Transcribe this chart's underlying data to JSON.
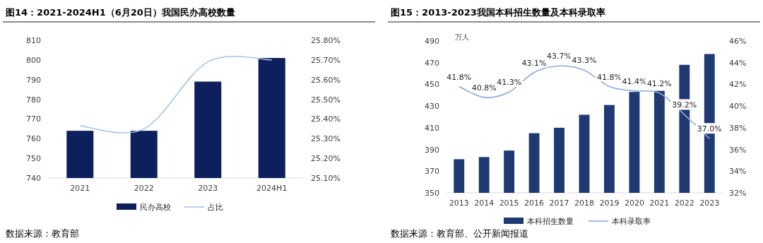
{
  "chart_data": [
    {
      "type": "bar",
      "title": "图14：2021-2024H1（6月20日）我国民办高校数量",
      "categories": [
        "2021",
        "2022",
        "2023",
        "2024H1"
      ],
      "series": [
        {
          "name": "民办高校",
          "color": "#0d1f5c",
          "values": [
            764,
            764,
            789,
            801
          ]
        },
        {
          "name": "占比",
          "type": "line",
          "axis": "y2",
          "color": "#a9c4e6",
          "values": [
            25.365,
            25.35,
            25.69,
            25.7
          ]
        }
      ],
      "ylim": [
        740,
        810
      ],
      "yticks": [
        740,
        750,
        760,
        770,
        780,
        790,
        800,
        810
      ],
      "y2lim": [
        25.1,
        25.8
      ],
      "y2ticks": [
        {
          "value": 25.1,
          "label": "25.10%"
        },
        {
          "value": 25.2,
          "label": "25.20%"
        },
        {
          "value": 25.3,
          "label": "25.30%"
        },
        {
          "value": 25.4,
          "label": "25.40%"
        },
        {
          "value": 25.5,
          "label": "25.50%"
        },
        {
          "value": 25.6,
          "label": "25.60%"
        },
        {
          "value": 25.7,
          "label": "25.70%"
        },
        {
          "value": 25.8,
          "label": "25.80%"
        }
      ],
      "legend": "bottom",
      "annotations": [
        "数据来源：教育部"
      ]
    },
    {
      "type": "bar",
      "title": "图15：2013-2023我国本科招生数量及本科录取率",
      "ylabel": "万人",
      "categories": [
        "2013",
        "2014",
        "2015",
        "2016",
        "2017",
        "2018",
        "2019",
        "2020",
        "2021",
        "2022",
        "2023"
      ],
      "series": [
        {
          "name": "本科招生数量",
          "color": "#1f3a73",
          "values": [
            381,
            383,
            389,
            405,
            410,
            422,
            431,
            443,
            444,
            468,
            478
          ]
        },
        {
          "name": "本科录取率",
          "type": "line",
          "axis": "y2",
          "color": "#8ea9d8",
          "values": [
            41.8,
            40.8,
            41.3,
            43.1,
            43.7,
            43.3,
            41.8,
            41.4,
            41.2,
            39.2,
            37.0
          ],
          "value_labels": [
            "41.8%",
            "40.8%",
            "41.3%",
            "43.1%",
            "43.7%",
            "43.3%",
            "41.8%",
            "41.4%",
            "41.2%",
            "39.2%",
            "37.0%"
          ]
        }
      ],
      "ylim": [
        350,
        490
      ],
      "yticks": [
        350,
        370,
        390,
        410,
        430,
        450,
        470,
        490
      ],
      "y2lim": [
        32,
        46
      ],
      "y2ticks": [
        {
          "value": 32,
          "label": "32%"
        },
        {
          "value": 34,
          "label": "34%"
        },
        {
          "value": 36,
          "label": "36%"
        },
        {
          "value": 38,
          "label": "38%"
        },
        {
          "value": 40,
          "label": "40%"
        },
        {
          "value": 42,
          "label": "42%"
        },
        {
          "value": 44,
          "label": "44%"
        },
        {
          "value": 46,
          "label": "46%"
        }
      ],
      "legend": "bottom",
      "annotations": [
        "数据来源：教育部、公开新闻报道"
      ]
    }
  ]
}
